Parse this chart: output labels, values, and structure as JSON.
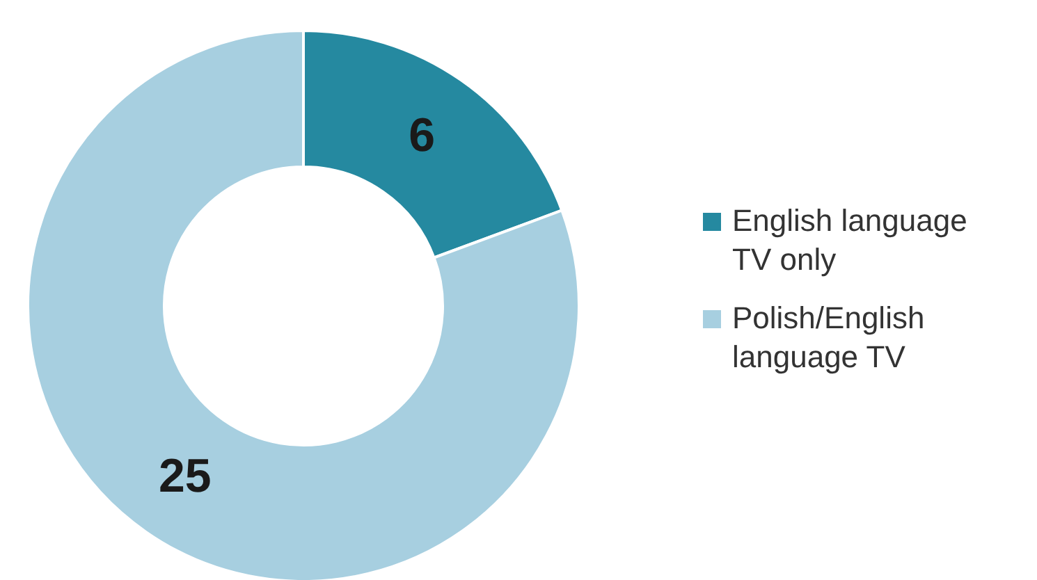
{
  "chart_data": {
    "type": "donut",
    "categories": [
      "English language TV only",
      "Polish/English language TV"
    ],
    "values": [
      6,
      25
    ],
    "colors": [
      "#2589a0",
      "#a7cfe0"
    ],
    "data_labels": true,
    "legend": "right"
  }
}
